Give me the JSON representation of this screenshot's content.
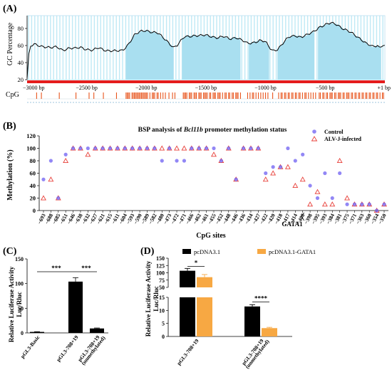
{
  "panels": {
    "a": "(A)",
    "b": "(B)",
    "c": "(C)",
    "d": "(D)"
  },
  "colors": {
    "gc_fill": "#a9dff0",
    "gc_line": "#000000",
    "cpg": "#e8541c",
    "red_axis": "#e51c1c",
    "control": "#6e5ff2",
    "alv": "#e8403a",
    "bar_black": "#000000",
    "bar_orange": "#f7a843"
  },
  "chart_data": [
    {
      "id": "A",
      "type": "area",
      "ylabel": "GC Percentage",
      "row2_label": "CpG",
      "yticks": [
        20,
        40,
        60,
        80
      ],
      "ylim": [
        20,
        95
      ],
      "xlim": [
        -3000,
        1
      ],
      "x_tick_values": [
        -3000,
        -2500,
        -2000,
        -1500,
        -1000,
        -500,
        1
      ],
      "x_tick_labels": [
        "−3000 bp",
        "−2500 bp",
        "−2000 bp",
        "−1500 bp",
        "−1000 bp",
        "−500 bp",
        "+1 bp"
      ],
      "gc_series": [
        [
          -3000,
          22
        ],
        [
          -2980,
          58
        ],
        [
          -2940,
          61
        ],
        [
          -2900,
          60
        ],
        [
          -2850,
          59
        ],
        [
          -2800,
          57
        ],
        [
          -2750,
          58
        ],
        [
          -2700,
          55
        ],
        [
          -2650,
          57
        ],
        [
          -2600,
          56
        ],
        [
          -2550,
          58
        ],
        [
          -2500,
          56
        ],
        [
          -2450,
          54
        ],
        [
          -2400,
          57
        ],
        [
          -2350,
          55
        ],
        [
          -2300,
          54
        ],
        [
          -2250,
          53
        ],
        [
          -2200,
          54
        ],
        [
          -2150,
          62
        ],
        [
          -2100,
          72
        ],
        [
          -2050,
          76
        ],
        [
          -2000,
          78
        ],
        [
          -1950,
          76
        ],
        [
          -1900,
          74
        ],
        [
          -1870,
          70
        ],
        [
          -1830,
          66
        ],
        [
          -1800,
          62
        ],
        [
          -1770,
          58
        ],
        [
          -1740,
          60
        ],
        [
          -1710,
          65
        ],
        [
          -1680,
          70
        ],
        [
          -1650,
          71
        ],
        [
          -1600,
          72
        ],
        [
          -1550,
          71
        ],
        [
          -1500,
          72
        ],
        [
          -1450,
          71
        ],
        [
          -1400,
          69
        ],
        [
          -1350,
          70
        ],
        [
          -1300,
          68
        ],
        [
          -1250,
          70
        ],
        [
          -1200,
          66
        ],
        [
          -1150,
          62
        ],
        [
          -1100,
          64
        ],
        [
          -1050,
          66
        ],
        [
          -1000,
          64
        ],
        [
          -970,
          58
        ],
        [
          -940,
          54
        ],
        [
          -900,
          56
        ],
        [
          -870,
          60
        ],
        [
          -830,
          66
        ],
        [
          -800,
          70
        ],
        [
          -750,
          72
        ],
        [
          -700,
          70
        ],
        [
          -650,
          72
        ],
        [
          -600,
          76
        ],
        [
          -550,
          82
        ],
        [
          -500,
          84
        ],
        [
          -450,
          86
        ],
        [
          -400,
          85
        ],
        [
          -350,
          80
        ],
        [
          -300,
          76
        ],
        [
          -250,
          72
        ],
        [
          -200,
          68
        ],
        [
          -150,
          62
        ],
        [
          -100,
          58
        ],
        [
          -60,
          60
        ],
        [
          -40,
          57
        ],
        [
          -20,
          62
        ],
        [
          1,
          60
        ]
      ],
      "gc_islands": [
        [
          -2170,
          -1770
        ],
        [
          -1700,
          -1210
        ],
        [
          -1140,
          -970
        ],
        [
          -900,
          -590
        ],
        [
          -560,
          -30
        ]
      ],
      "cpg_sites": [
        -2920,
        -2880,
        -2730,
        -2590,
        -2480,
        -2440,
        -2360,
        -2250,
        -2170,
        -2160,
        -2150,
        -2140,
        -2120,
        -2110,
        -2100,
        -2090,
        -2080,
        -2070,
        -2060,
        -2050,
        -2040,
        -2030,
        -2020,
        -2010,
        -2000,
        -1990,
        -1970,
        -1950,
        -1940,
        -1930,
        -1910,
        -1900,
        -1880,
        -1860,
        -1840,
        -1810,
        -1780,
        -1760,
        -1690,
        -1680,
        -1670,
        -1660,
        -1640,
        -1630,
        -1620,
        -1600,
        -1590,
        -1580,
        -1560,
        -1550,
        -1540,
        -1520,
        -1510,
        -1500,
        -1490,
        -1470,
        -1460,
        -1440,
        -1430,
        -1420,
        -1400,
        -1390,
        -1380,
        -1360,
        -1340,
        -1330,
        -1310,
        -1300,
        -1280,
        -1270,
        -1250,
        -1240,
        -1230,
        -1210,
        -1150,
        -1130,
        -1110,
        -1100,
        -1080,
        -1060,
        -1040,
        -1020,
        -1000,
        -980,
        -940,
        -890,
        -870,
        -860,
        -840,
        -830,
        -810,
        -800,
        -780,
        -770,
        -750,
        -740,
        -720,
        -710,
        -690,
        -670,
        -660,
        -640,
        -620,
        -600,
        -580,
        -550,
        -540,
        -520,
        -510,
        -490,
        -480,
        -460,
        -450,
        -440,
        -420,
        -410,
        -390,
        -380,
        -370,
        -350,
        -340,
        -320,
        -310,
        -300,
        -280,
        -270,
        -250,
        -240,
        -220,
        -210,
        -190,
        -180,
        -160,
        -150,
        -130,
        -120,
        -100,
        -90,
        -70,
        -60,
        -40,
        -20,
        -10
      ]
    },
    {
      "id": "B",
      "type": "scatter",
      "title_prefix": "BSP analysis of ",
      "title_gene": "Bcl11b",
      "title_suffix": " promoter methylation status",
      "xlabel": "CpG sites",
      "ylabel": "Methylation (%)",
      "ylim": [
        0,
        120
      ],
      "yticks": [
        0,
        20,
        40,
        60,
        80,
        100,
        120
      ],
      "annotation": "GATA1",
      "categories": [
        "−693",
        "−688",
        "−685",
        "−651",
        "−646",
        "−638",
        "−632",
        "−627",
        "−621",
        "−615",
        "−611",
        "−604",
        "−593",
        "−590",
        "−589",
        "−582",
        "−480",
        "−473",
        "−472",
        "−471",
        "−466",
        "−462",
        "−461",
        "−455",
        "−452",
        "−448",
        "−446",
        "−436",
        "−434",
        "−427",
        "−422",
        "−420",
        "−418",
        "−417",
        "−414",
        "−408",
        "−398",
        "−395",
        "−393",
        "−384",
        "−381",
        "−375",
        "−371",
        "−363",
        "−360",
        "−354",
        "−350"
      ],
      "series": [
        {
          "name": "Control",
          "marker": "circle",
          "values": [
            50,
            80,
            20,
            90,
            100,
            100,
            100,
            100,
            100,
            100,
            100,
            100,
            100,
            100,
            100,
            100,
            80,
            100,
            80,
            80,
            100,
            100,
            100,
            100,
            80,
            100,
            50,
            100,
            100,
            100,
            60,
            70,
            70,
            100,
            80,
            90,
            40,
            20,
            60,
            20,
            60,
            10,
            10,
            10,
            10,
            0,
            10
          ]
        },
        {
          "name": "ALV-J-infected",
          "marker": "triangle",
          "values": [
            20,
            50,
            20,
            80,
            100,
            100,
            90,
            100,
            100,
            100,
            100,
            100,
            100,
            100,
            100,
            100,
            100,
            100,
            100,
            100,
            100,
            100,
            100,
            90,
            80,
            100,
            50,
            100,
            100,
            100,
            50,
            60,
            70,
            70,
            40,
            50,
            10,
            30,
            10,
            10,
            80,
            20,
            10,
            10,
            10,
            0,
            10
          ]
        }
      ]
    },
    {
      "id": "C",
      "type": "bar",
      "ylabel": "Relative Luciferase Activity",
      "ylabel2": "Luc/Rluc",
      "ylim": [
        0,
        150
      ],
      "yticks": [
        0,
        50,
        100,
        150
      ],
      "categories": [
        "pGL3-Basic",
        "pGL3-708+19",
        "pGL3-708+19"
      ],
      "category_sublabels": [
        "",
        "",
        "(unmethylated)"
      ],
      "values": [
        2,
        104,
        9
      ],
      "errors": [
        0.5,
        8,
        1
      ],
      "significance": [
        {
          "from": 0,
          "to": 1,
          "label": "***"
        },
        {
          "from": 1,
          "to": 2,
          "label": "***"
        }
      ]
    },
    {
      "id": "D",
      "type": "bar",
      "ylabel": "Relative Luciferase Activity",
      "ylabel2": "Luc/Rluc",
      "axis_break": {
        "lower": [
          0,
          15
        ],
        "upper": [
          50,
          150
        ]
      },
      "yticks_lower": [
        0,
        5,
        10,
        15
      ],
      "yticks_upper": [
        50,
        75,
        100,
        125,
        150
      ],
      "categories": [
        "pGL3-708+19",
        "pGL3-708+19"
      ],
      "category_sublabels": [
        "",
        "(unmethylated)"
      ],
      "series": [
        {
          "name": "pcDNA3.1",
          "values": [
            107,
            11.5
          ],
          "errors": [
            8,
            0.7
          ]
        },
        {
          "name": "pcDNA3.1-GATA1",
          "values": [
            85,
            3.2
          ],
          "errors": [
            9,
            0.3
          ]
        }
      ],
      "significance": [
        {
          "group": 0,
          "label": "*"
        },
        {
          "group": 1,
          "label": "****"
        }
      ]
    }
  ]
}
